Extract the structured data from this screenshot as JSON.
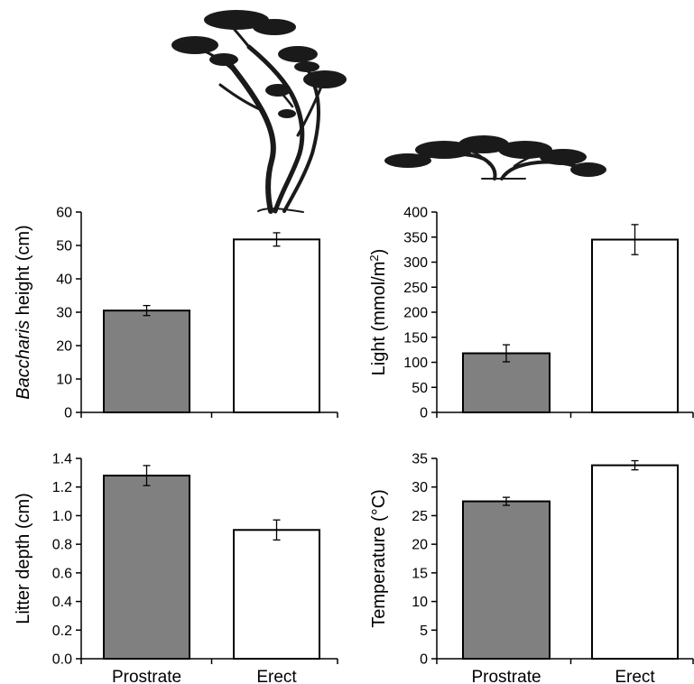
{
  "colors": {
    "prostrate": "#808080",
    "erect": "#ffffff",
    "tree_ink": "#1a1a1a"
  },
  "icons": {
    "erect_tree": "erect-tree-icon",
    "prostrate_shrub": "prostrate-shrub-icon"
  },
  "chart_data": [
    {
      "type": "bar",
      "categories": [
        "Prostrate",
        "Erect"
      ],
      "values": [
        30.5,
        51.8
      ],
      "errors": [
        1.5,
        2.0
      ],
      "ylabel_parts": [
        "Baccharis",
        " height (cm)"
      ],
      "ylim": [
        0,
        60
      ],
      "yticks": [
        "0",
        "10",
        "20",
        "30",
        "40",
        "50",
        "60"
      ],
      "show_xticklabels": false
    },
    {
      "type": "bar",
      "categories": [
        "Prostrate",
        "Erect"
      ],
      "values": [
        118,
        345
      ],
      "errors": [
        17,
        30
      ],
      "ylabel_parts": [
        "Light (mmol/m",
        "2",
        ")"
      ],
      "ylim": [
        0,
        400
      ],
      "yticks": [
        "0",
        "50",
        "100",
        "150",
        "200",
        "250",
        "300",
        "350",
        "400"
      ],
      "show_xticklabels": false
    },
    {
      "type": "bar",
      "categories": [
        "Prostrate",
        "Erect"
      ],
      "values": [
        1.28,
        0.9
      ],
      "errors": [
        0.07,
        0.07
      ],
      "ylabel_parts": [
        "Litter depth (cm)"
      ],
      "ylim": [
        0,
        1.4
      ],
      "yticks": [
        "0.0",
        "0.2",
        "0.4",
        "0.6",
        "0.8",
        "1.0",
        "1.2",
        "1.4"
      ],
      "show_xticklabels": true
    },
    {
      "type": "bar",
      "categories": [
        "Prostrate",
        "Erect"
      ],
      "values": [
        27.5,
        33.8
      ],
      "errors": [
        0.7,
        0.8
      ],
      "ylabel_parts": [
        "Temperature (°C)"
      ],
      "ylim": [
        0,
        35
      ],
      "yticks": [
        "0",
        "5",
        "10",
        "15",
        "20",
        "25",
        "30",
        "35"
      ],
      "show_xticklabels": true
    }
  ]
}
